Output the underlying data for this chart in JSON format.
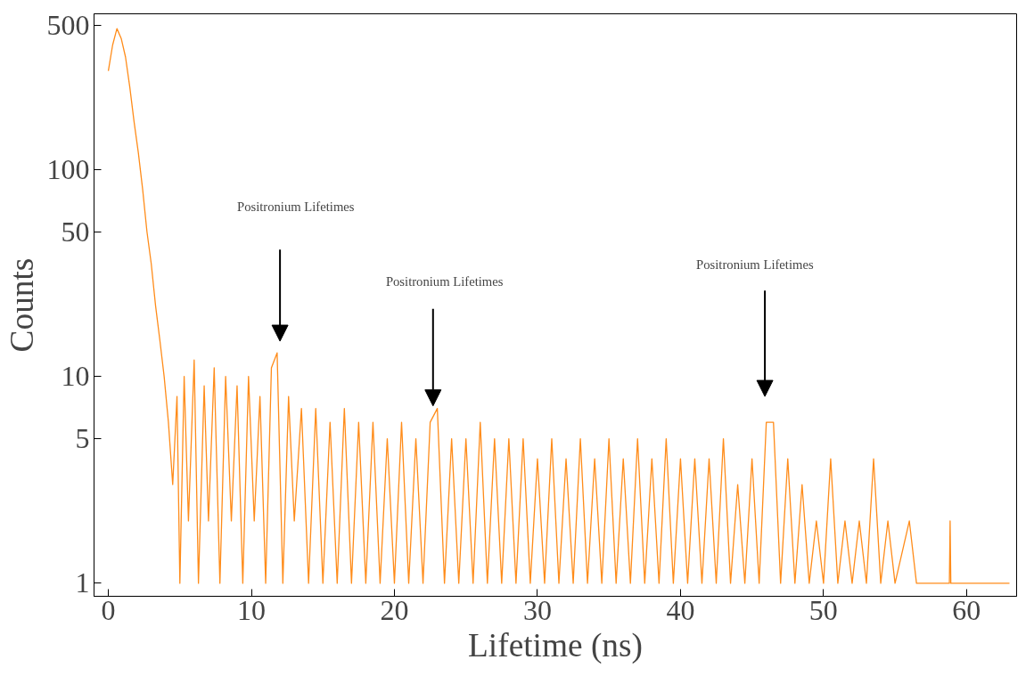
{
  "chart_data": {
    "type": "line",
    "xlabel": "Lifetime (ns)",
    "ylabel": "Counts",
    "log": "y",
    "xlim": [
      -1,
      63.5
    ],
    "ylim": [
      0.865,
      566
    ],
    "xticks": [
      0,
      10,
      20,
      30,
      40,
      50,
      60
    ],
    "yticks": [
      1,
      5,
      10,
      50,
      100,
      500
    ],
    "grid": false,
    "marker": "none",
    "line_style": "solid",
    "annotations": [
      "Positronium Lifetimes",
      "Positronium Lifetimes",
      "Positronium Lifetimes"
    ],
    "series": [
      {
        "color": "#ff8c1a",
        "x": [
          0,
          0.3,
          0.6,
          0.9,
          1.2,
          1.5,
          1.8,
          2.1,
          2.4,
          2.7,
          3.0,
          3.3,
          3.6,
          3.9,
          4.2,
          4.5,
          4.8,
          5.0,
          5.3,
          5.6,
          6.0,
          6.3,
          6.7,
          7.0,
          7.4,
          7.8,
          8.2,
          8.6,
          9.0,
          9.4,
          9.8,
          10.2,
          10.6,
          11.0,
          11.4,
          11.8,
          12.2,
          12.6,
          13.0,
          13.5,
          14.0,
          14.5,
          15.0,
          15.5,
          16,
          16.5,
          17,
          17.5,
          18,
          18.5,
          19,
          19.5,
          20,
          20.5,
          21,
          21.5,
          22,
          22.5,
          23,
          23.5,
          24,
          24.5,
          25,
          25.5,
          26,
          26.5,
          27,
          27.5,
          28,
          28.5,
          29,
          29.5,
          30,
          30.5,
          31,
          31.5,
          32,
          32.5,
          33,
          33.5,
          34,
          34.5,
          35,
          35.5,
          36,
          36.5,
          37,
          37.5,
          38,
          38.5,
          39,
          39.5,
          40,
          40.5,
          41,
          41.5,
          42,
          42.5,
          43,
          43.5,
          44,
          44.5,
          45,
          45.5,
          46,
          46.5,
          47,
          47.5,
          48,
          48.5,
          49,
          49.5,
          50,
          50.5,
          51,
          51.5,
          52,
          52.5,
          53,
          53.5,
          54,
          54.5,
          55,
          56,
          56.5,
          58.8,
          58.85,
          58.9,
          63
        ],
        "values": [
          300,
          400,
          480,
          430,
          350,
          250,
          170,
          120,
          80,
          50,
          35,
          22,
          15,
          10,
          6,
          3,
          8,
          1,
          10,
          2,
          12,
          1,
          9,
          2,
          11,
          1,
          10,
          2,
          9,
          1,
          10,
          2,
          8,
          1,
          11,
          13,
          1,
          8,
          2,
          7,
          1,
          7,
          1,
          6,
          1,
          7,
          1,
          6,
          1,
          6,
          1,
          5,
          1,
          6,
          1,
          5,
          1,
          6,
          7,
          1,
          5,
          1,
          5,
          1,
          6,
          1,
          5,
          1,
          5,
          1,
          5,
          1,
          4,
          1,
          5,
          1,
          4,
          1,
          5,
          1,
          4,
          1,
          5,
          1,
          4,
          1,
          5,
          1,
          4,
          1,
          5,
          1,
          4,
          1,
          4,
          1,
          4,
          1,
          5,
          1,
          3,
          1,
          4,
          1,
          6,
          6,
          1,
          4,
          1,
          3,
          1,
          2,
          1,
          4,
          1,
          2,
          1,
          2,
          1,
          4,
          1,
          2,
          1,
          2,
          1,
          1,
          2,
          1,
          1
        ]
      }
    ]
  }
}
